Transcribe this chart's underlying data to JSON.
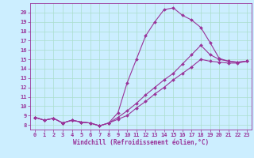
{
  "bg_color": "#cceeff",
  "grid_color": "#aaddcc",
  "line_color": "#993399",
  "xlabel": "Windchill (Refroidissement éolien,°C)",
  "xlim": [
    -0.5,
    23.5
  ],
  "ylim": [
    7.5,
    21.0
  ],
  "xticks": [
    0,
    1,
    2,
    3,
    4,
    5,
    6,
    7,
    8,
    9,
    10,
    11,
    12,
    13,
    14,
    15,
    16,
    17,
    18,
    19,
    20,
    21,
    22,
    23
  ],
  "yticks": [
    8,
    9,
    10,
    11,
    12,
    13,
    14,
    15,
    16,
    17,
    18,
    19,
    20
  ],
  "curve1_x": [
    0,
    1,
    2,
    3,
    4,
    5,
    6,
    7,
    8,
    9,
    10,
    11,
    12,
    13,
    14,
    15,
    16,
    17,
    18,
    19,
    20,
    21,
    22,
    23
  ],
  "curve1_y": [
    8.8,
    8.5,
    8.7,
    8.2,
    8.5,
    8.3,
    8.2,
    7.9,
    8.2,
    9.3,
    12.5,
    15.0,
    17.5,
    19.0,
    20.3,
    20.5,
    19.7,
    19.2,
    18.4,
    16.8,
    15.1,
    14.8,
    14.7,
    14.8
  ],
  "curve2_x": [
    0,
    1,
    2,
    3,
    4,
    5,
    6,
    7,
    8,
    9,
    10,
    11,
    12,
    13,
    14,
    15,
    16,
    17,
    18,
    19,
    20,
    21,
    22,
    23
  ],
  "curve2_y": [
    8.8,
    8.5,
    8.7,
    8.2,
    8.5,
    8.3,
    8.2,
    7.9,
    8.2,
    8.8,
    9.5,
    10.3,
    11.2,
    12.0,
    12.8,
    13.5,
    14.5,
    15.5,
    16.5,
    15.5,
    15.0,
    14.8,
    14.7,
    14.8
  ],
  "curve3_x": [
    0,
    1,
    2,
    3,
    4,
    5,
    6,
    7,
    8,
    9,
    10,
    11,
    12,
    13,
    14,
    15,
    16,
    17,
    18,
    19,
    20,
    21,
    22,
    23
  ],
  "curve3_y": [
    8.8,
    8.5,
    8.7,
    8.2,
    8.5,
    8.3,
    8.2,
    7.9,
    8.2,
    8.6,
    9.0,
    9.8,
    10.5,
    11.3,
    12.0,
    12.8,
    13.5,
    14.2,
    15.0,
    14.8,
    14.7,
    14.6,
    14.6,
    14.8
  ]
}
